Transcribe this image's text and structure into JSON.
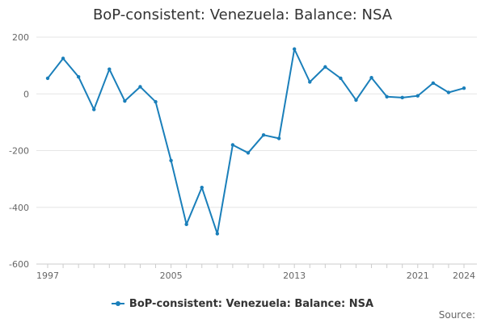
{
  "chart_data": {
    "type": "line",
    "title": "BoP-consistent: Venezuela: Balance: NSA",
    "xlabel": "",
    "ylabel": "",
    "x": [
      1997,
      1998,
      1999,
      2000,
      2001,
      2002,
      2003,
      2004,
      2005,
      2006,
      2007,
      2008,
      2009,
      2010,
      2011,
      2012,
      2013,
      2014,
      2015,
      2016,
      2017,
      2018,
      2019,
      2020,
      2021,
      2022,
      2023,
      2024
    ],
    "series": [
      {
        "name": "BoP-consistent: Venezuela: Balance: NSA",
        "color": "#1a7fba",
        "values": [
          55,
          125,
          60,
          -55,
          87,
          -25,
          25,
          -28,
          -235,
          -460,
          -330,
          -493,
          -180,
          -208,
          -145,
          -157,
          158,
          42,
          95,
          55,
          -22,
          57,
          -10,
          -13,
          -7,
          38,
          5,
          20
        ]
      }
    ],
    "xticks": [
      1997,
      2005,
      2013,
      2021,
      2024
    ],
    "xtick_labels": [
      "1997",
      "2005",
      "2013",
      "2021",
      "2024"
    ],
    "yticks": [
      200,
      0,
      -200,
      -400,
      -600
    ],
    "ytick_labels": [
      "200",
      "0",
      "-200",
      "-400",
      "-600"
    ],
    "ylim": [
      -600,
      200
    ],
    "xlim": [
      1997,
      2024
    ],
    "grid": true,
    "legend_position": "bottom"
  },
  "source_label": "Source:"
}
